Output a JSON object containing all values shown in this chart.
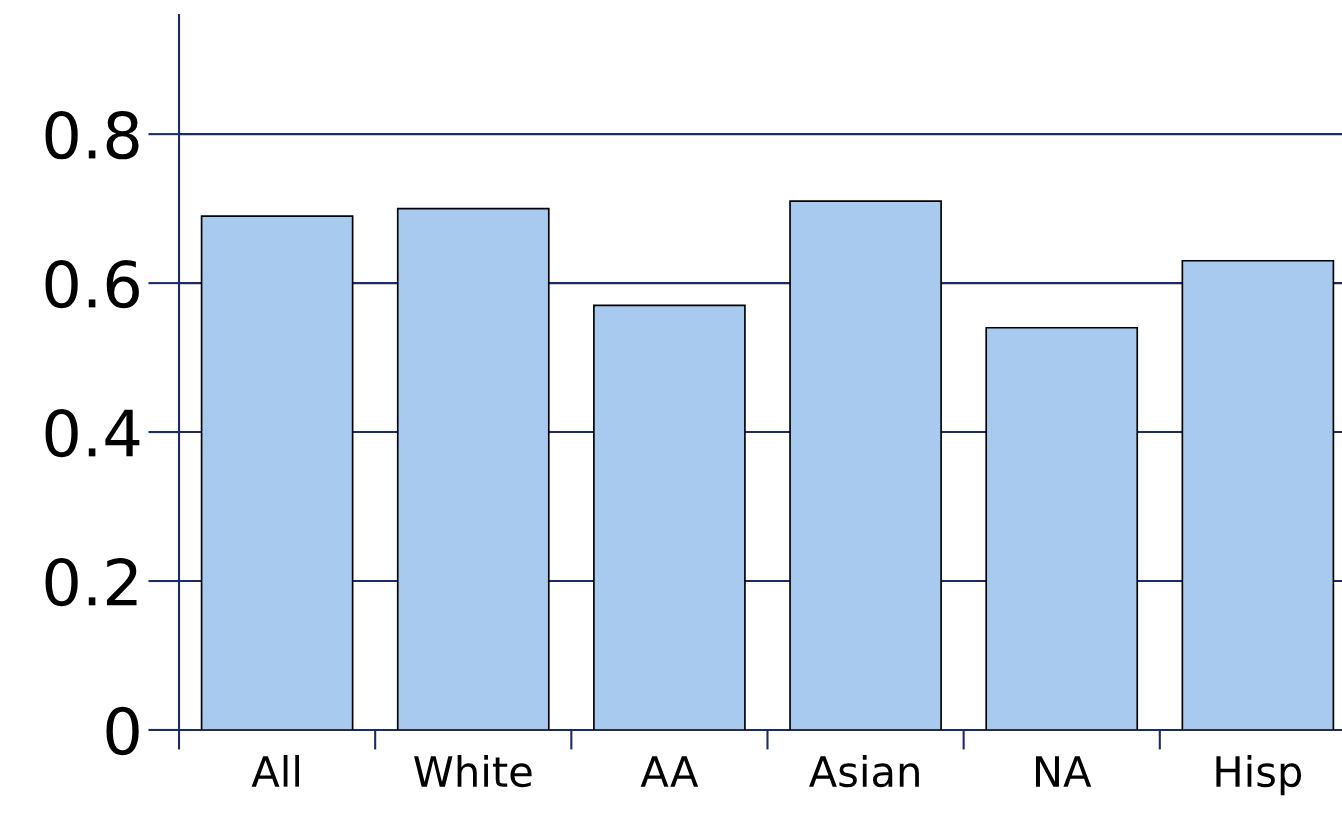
{
  "chart_data": {
    "type": "bar",
    "categories": [
      "All",
      "White",
      "AA",
      "Asian",
      "NA",
      "Hisp"
    ],
    "values": [
      0.69,
      0.7,
      0.57,
      0.71,
      0.54,
      0.63
    ],
    "color": "#a9caef",
    "ylim": [
      0,
      0.96
    ],
    "yticks": [
      {
        "value": 0,
        "label": "0"
      },
      0.2,
      0.4,
      0.6,
      0.8
    ],
    "grid": "y"
  }
}
